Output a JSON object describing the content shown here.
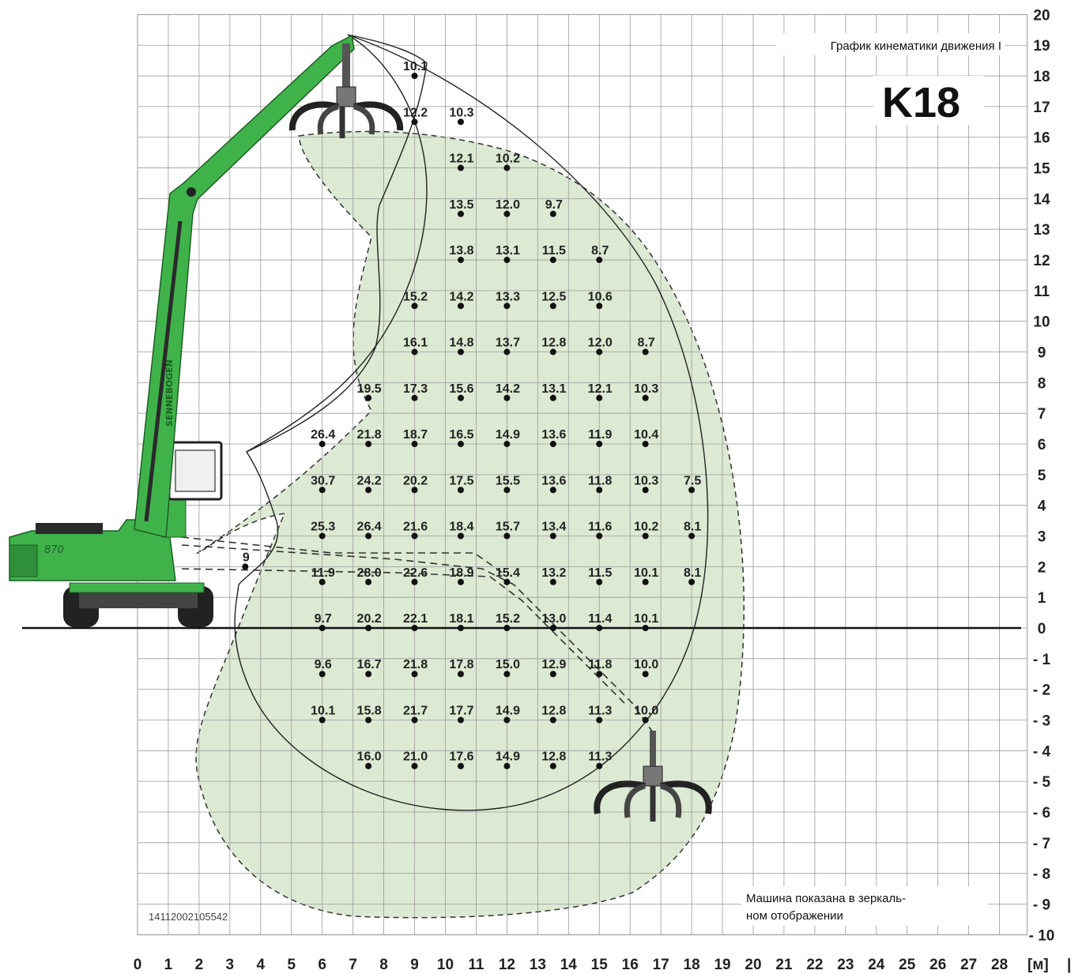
{
  "title": "График кинематики движения I",
  "model": "K18",
  "document_id": "14112002105542",
  "note_lines": [
    "Машина показана в зеркаль-",
    "ном отображении"
  ],
  "unit_label": "[м]",
  "unit_marker": "|",
  "machine_brand": "SENNEBOGEN",
  "machine_model": "870",
  "colors": {
    "machine": "#3fb34a",
    "work_area": "#dce9d3",
    "grid": "#9a9a9a",
    "ink": "#222222"
  },
  "chart_data": {
    "type": "scatter",
    "x_axis": {
      "min": 0,
      "max": 28,
      "ticks": [
        0,
        1,
        2,
        3,
        4,
        5,
        6,
        7,
        8,
        9,
        10,
        11,
        12,
        13,
        14,
        15,
        16,
        17,
        18,
        19,
        20,
        21,
        22,
        23,
        24,
        25,
        26,
        27,
        28
      ]
    },
    "y_axis": {
      "min": -10,
      "max": 20,
      "ticks": [
        20,
        19,
        18,
        17,
        16,
        15,
        14,
        13,
        12,
        11,
        10,
        9,
        8,
        7,
        6,
        5,
        4,
        3,
        2,
        1,
        0,
        -1,
        -2,
        -3,
        -4,
        -5,
        -6,
        -7,
        -8,
        -9,
        -10
      ]
    },
    "y_tick_labels": [
      "20",
      "19",
      "18",
      "17",
      "16",
      "15",
      "14",
      "13",
      "12",
      "11",
      "10",
      "9",
      "8",
      "7",
      "6",
      "5",
      "4",
      "3",
      "2",
      "1",
      "0",
      "- 1",
      "- 2",
      "- 3",
      "- 4",
      "- 5",
      "- 6",
      "- 7",
      "- 8",
      "- 9",
      "- 10"
    ],
    "points": [
      {
        "x": 9,
        "y": 18,
        "label": "10.1"
      },
      {
        "x": 9,
        "y": 16.5,
        "label": "12.2"
      },
      {
        "x": 10.5,
        "y": 16.5,
        "label": "10.3"
      },
      {
        "x": 10.5,
        "y": 15,
        "label": "12.1"
      },
      {
        "x": 12,
        "y": 15,
        "label": "10.2"
      },
      {
        "x": 10.5,
        "y": 13.5,
        "label": "13.5"
      },
      {
        "x": 12,
        "y": 13.5,
        "label": "12.0"
      },
      {
        "x": 13.5,
        "y": 13.5,
        "label": "9.7"
      },
      {
        "x": 10.5,
        "y": 12,
        "label": "13.8"
      },
      {
        "x": 12,
        "y": 12,
        "label": "13.1"
      },
      {
        "x": 13.5,
        "y": 12,
        "label": "11.5"
      },
      {
        "x": 15,
        "y": 12,
        "label": "8.7"
      },
      {
        "x": 9,
        "y": 10.5,
        "label": "15.2"
      },
      {
        "x": 10.5,
        "y": 10.5,
        "label": "14.2"
      },
      {
        "x": 12,
        "y": 10.5,
        "label": "13.3"
      },
      {
        "x": 13.5,
        "y": 10.5,
        "label": "12.5"
      },
      {
        "x": 15,
        "y": 10.5,
        "label": "10.6"
      },
      {
        "x": 9,
        "y": 9,
        "label": "16.1"
      },
      {
        "x": 10.5,
        "y": 9,
        "label": "14.8"
      },
      {
        "x": 12,
        "y": 9,
        "label": "13.7"
      },
      {
        "x": 13.5,
        "y": 9,
        "label": "12.8"
      },
      {
        "x": 15,
        "y": 9,
        "label": "12.0"
      },
      {
        "x": 16.5,
        "y": 9,
        "label": "8.7"
      },
      {
        "x": 7.5,
        "y": 7.5,
        "label": "19.5"
      },
      {
        "x": 9,
        "y": 7.5,
        "label": "17.3"
      },
      {
        "x": 10.5,
        "y": 7.5,
        "label": "15.6"
      },
      {
        "x": 12,
        "y": 7.5,
        "label": "14.2"
      },
      {
        "x": 13.5,
        "y": 7.5,
        "label": "13.1"
      },
      {
        "x": 15,
        "y": 7.5,
        "label": "12.1"
      },
      {
        "x": 16.5,
        "y": 7.5,
        "label": "10.3"
      },
      {
        "x": 6,
        "y": 6,
        "label": "26.4"
      },
      {
        "x": 7.5,
        "y": 6,
        "label": "21.8"
      },
      {
        "x": 9,
        "y": 6,
        "label": "18.7"
      },
      {
        "x": 10.5,
        "y": 6,
        "label": "16.5"
      },
      {
        "x": 12,
        "y": 6,
        "label": "14.9"
      },
      {
        "x": 13.5,
        "y": 6,
        "label": "13.6"
      },
      {
        "x": 15,
        "y": 6,
        "label": "11.9"
      },
      {
        "x": 16.5,
        "y": 6,
        "label": "10.4"
      },
      {
        "x": 6,
        "y": 4.5,
        "label": "30.7"
      },
      {
        "x": 7.5,
        "y": 4.5,
        "label": "24.2"
      },
      {
        "x": 9,
        "y": 4.5,
        "label": "20.2"
      },
      {
        "x": 10.5,
        "y": 4.5,
        "label": "17.5"
      },
      {
        "x": 12,
        "y": 4.5,
        "label": "15.5"
      },
      {
        "x": 13.5,
        "y": 4.5,
        "label": "13.6"
      },
      {
        "x": 15,
        "y": 4.5,
        "label": "11.8"
      },
      {
        "x": 16.5,
        "y": 4.5,
        "label": "10.3"
      },
      {
        "x": 18,
        "y": 4.5,
        "label": "7.5"
      },
      {
        "x": 6,
        "y": 3,
        "label": "25.3"
      },
      {
        "x": 7.5,
        "y": 3,
        "label": "26.4"
      },
      {
        "x": 9,
        "y": 3,
        "label": "21.6"
      },
      {
        "x": 10.5,
        "y": 3,
        "label": "18.4"
      },
      {
        "x": 12,
        "y": 3,
        "label": "15.7"
      },
      {
        "x": 13.5,
        "y": 3,
        "label": "13.4"
      },
      {
        "x": 15,
        "y": 3,
        "label": "11.6"
      },
      {
        "x": 16.5,
        "y": 3,
        "label": "10.2"
      },
      {
        "x": 18,
        "y": 3,
        "label": "8.1"
      },
      {
        "x": 6,
        "y": 1.5,
        "label": "11.9"
      },
      {
        "x": 7.5,
        "y": 1.5,
        "label": "28.0"
      },
      {
        "x": 9,
        "y": 1.5,
        "label": "22.6"
      },
      {
        "x": 10.5,
        "y": 1.5,
        "label": "18.9"
      },
      {
        "x": 12,
        "y": 1.5,
        "label": "15.4"
      },
      {
        "x": 13.5,
        "y": 1.5,
        "label": "13.2"
      },
      {
        "x": 15,
        "y": 1.5,
        "label": "11.5"
      },
      {
        "x": 16.5,
        "y": 1.5,
        "label": "10.1"
      },
      {
        "x": 18,
        "y": 1.5,
        "label": "8.1"
      },
      {
        "x": 6,
        "y": 0,
        "label": "9.7"
      },
      {
        "x": 7.5,
        "y": 0,
        "label": "20.2"
      },
      {
        "x": 9,
        "y": 0,
        "label": "22.1"
      },
      {
        "x": 10.5,
        "y": 0,
        "label": "18.1"
      },
      {
        "x": 12,
        "y": 0,
        "label": "15.2"
      },
      {
        "x": 13.5,
        "y": 0,
        "label": "13.0"
      },
      {
        "x": 15,
        "y": 0,
        "label": "11.4"
      },
      {
        "x": 16.5,
        "y": 0,
        "label": "10.1"
      },
      {
        "x": 6,
        "y": -1.5,
        "label": "9.6"
      },
      {
        "x": 7.5,
        "y": -1.5,
        "label": "16.7"
      },
      {
        "x": 9,
        "y": -1.5,
        "label": "21.8"
      },
      {
        "x": 10.5,
        "y": -1.5,
        "label": "17.8"
      },
      {
        "x": 12,
        "y": -1.5,
        "label": "15.0"
      },
      {
        "x": 13.5,
        "y": -1.5,
        "label": "12.9"
      },
      {
        "x": 15,
        "y": -1.5,
        "label": "11.8"
      },
      {
        "x": 16.5,
        "y": -1.5,
        "label": "10.0"
      },
      {
        "x": 6,
        "y": -3,
        "label": "10.1"
      },
      {
        "x": 7.5,
        "y": -3,
        "label": "15.8"
      },
      {
        "x": 9,
        "y": -3,
        "label": "21.7"
      },
      {
        "x": 10.5,
        "y": -3,
        "label": "17.7"
      },
      {
        "x": 12,
        "y": -3,
        "label": "14.9"
      },
      {
        "x": 13.5,
        "y": -3,
        "label": "12.8"
      },
      {
        "x": 15,
        "y": -3,
        "label": "11.3"
      },
      {
        "x": 16.5,
        "y": -3,
        "label": "10.0"
      },
      {
        "x": 7.5,
        "y": -4.5,
        "label": "16.0"
      },
      {
        "x": 9,
        "y": -4.5,
        "label": "21.0"
      },
      {
        "x": 10.5,
        "y": -4.5,
        "label": "17.6"
      },
      {
        "x": 12,
        "y": -4.5,
        "label": "14.9"
      },
      {
        "x": 13.5,
        "y": -4.5,
        "label": "12.8"
      },
      {
        "x": 15,
        "y": -4.5,
        "label": "11.3"
      },
      {
        "x": 3.5,
        "y": 2,
        "label": "9"
      }
    ]
  }
}
